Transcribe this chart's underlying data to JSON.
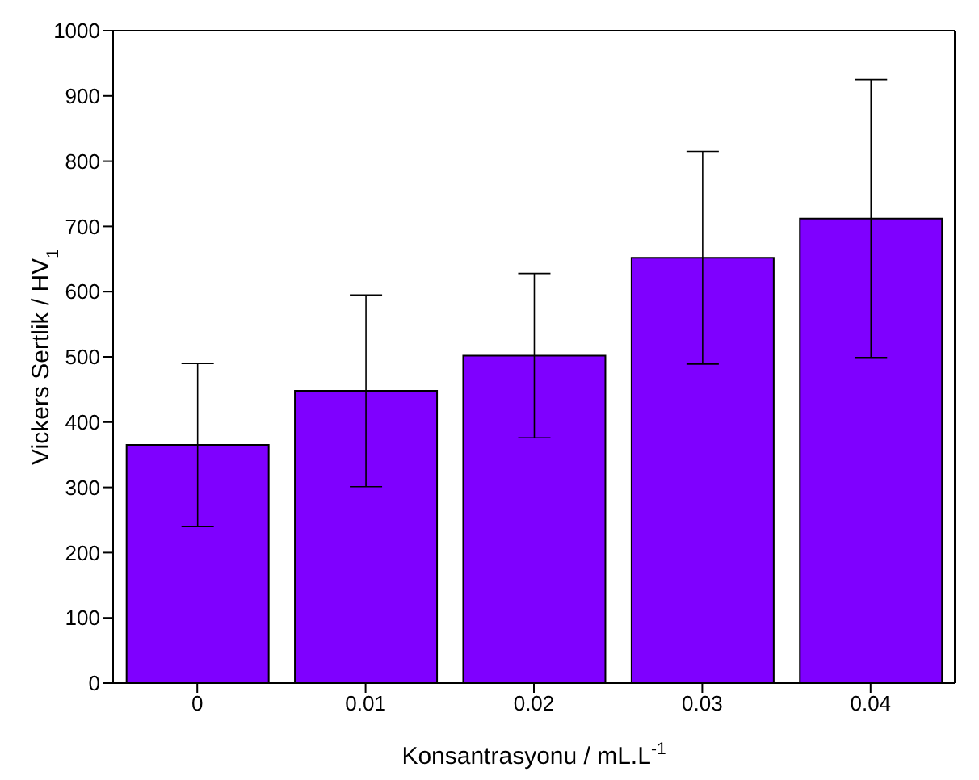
{
  "chart_data": {
    "type": "bar",
    "categories": [
      "0",
      "0.01",
      "0.02",
      "0.03",
      "0.04"
    ],
    "values": [
      365,
      448,
      502,
      652,
      712
    ],
    "errors": [
      125,
      147,
      126,
      163,
      213
    ],
    "color": "#7f00ff",
    "xlabel": "Konsantrasyonu / mL.L$^{-1}$",
    "ylabel": "Vickers Sertlik / HV$_{1}$",
    "ylim": [
      0,
      1000
    ],
    "yticks": [
      0,
      100,
      200,
      300,
      400,
      500,
      600,
      700,
      800,
      900,
      1000
    ],
    "grid": false,
    "legend": false
  }
}
